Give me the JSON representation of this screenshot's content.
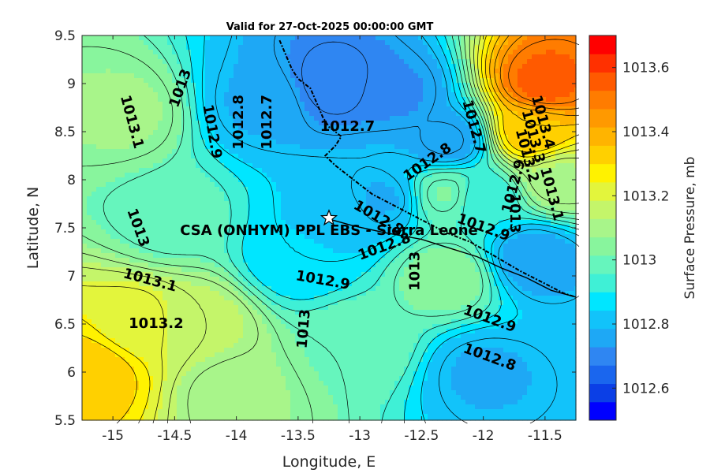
{
  "title": "Valid for 27-Oct-2025 00:00:00 GMT",
  "station_label": "CSA (ONHYM) PPL EBS - Sierra Leone",
  "chart_data": {
    "type": "contour-map",
    "title": "Valid for 27-Oct-2025 00:00:00 GMT",
    "xlabel": "Longitude, E",
    "ylabel": "Latitude, N",
    "xlim": [
      -15.25,
      -11.25
    ],
    "ylim": [
      5.5,
      9.5
    ],
    "x_ticks": [
      -15,
      -14.5,
      -14,
      -13.5,
      -13,
      -12.5,
      -12,
      -11.5
    ],
    "x_tick_labels": [
      "-15",
      "-14.5",
      "-14",
      "-13.5",
      "-13",
      "-12.5",
      "-12",
      "-11.5"
    ],
    "y_ticks": [
      5.5,
      6,
      6.5,
      7,
      7.5,
      8,
      8.5,
      9,
      9.5
    ],
    "y_tick_labels": [
      "5.5",
      "6",
      "6.5",
      "7",
      "7.5",
      "8",
      "8.5",
      "9",
      "9.5"
    ],
    "colorbar": {
      "label": "Surface Pressure, mb",
      "range": [
        1012.5,
        1013.7
      ],
      "levels": [
        1012.5,
        1012.55,
        1012.6,
        1012.65,
        1012.7,
        1012.75,
        1012.8,
        1012.85,
        1012.9,
        1012.95,
        1013.0,
        1013.05,
        1013.1,
        1013.15,
        1013.2,
        1013.25,
        1013.3,
        1013.35,
        1013.4,
        1013.45,
        1013.5,
        1013.55,
        1013.6,
        1013.65,
        1013.7
      ],
      "colors": [
        "#0000ff",
        "#0b3fe6",
        "#1a66ee",
        "#2f86f2",
        "#1ea8f5",
        "#12c3fa",
        "#00e6ff",
        "#3ff0d6",
        "#66f5bd",
        "#88f59d",
        "#a8f58a",
        "#c4f56a",
        "#e3f53c",
        "#fff200",
        "#ffd000",
        "#ffb400",
        "#ff9900",
        "#ff7c00",
        "#ff5a00",
        "#ff3000",
        "#ff0000"
      ],
      "tick_values": [
        1012.6,
        1012.8,
        1013.0,
        1013.2,
        1013.4,
        1013.6
      ],
      "tick_labels": [
        "1012.6",
        "1012.8",
        "1013",
        "1013.2",
        "1013.4",
        "1013.6"
      ]
    },
    "field_anchors": [
      {
        "lon": -15.2,
        "lat": 6.0,
        "p": 1013.35
      },
      {
        "lon": -14.8,
        "lat": 6.5,
        "p": 1013.22
      },
      {
        "lon": -14.3,
        "lat": 6.5,
        "p": 1013.15
      },
      {
        "lon": -14.9,
        "lat": 8.7,
        "p": 1013.08
      },
      {
        "lon": -14.5,
        "lat": 7.6,
        "p": 1012.98
      },
      {
        "lon": -13.8,
        "lat": 8.8,
        "p": 1012.78
      },
      {
        "lon": -13.2,
        "lat": 9.0,
        "p": 1012.68
      },
      {
        "lon": -12.7,
        "lat": 8.9,
        "p": 1012.72
      },
      {
        "lon": -12.3,
        "lat": 8.4,
        "p": 1012.74
      },
      {
        "lon": -11.5,
        "lat": 9.0,
        "p": 1013.55
      },
      {
        "lon": -11.6,
        "lat": 8.5,
        "p": 1013.35
      },
      {
        "lon": -11.4,
        "lat": 8.0,
        "p": 1013.12
      },
      {
        "lon": -12.0,
        "lat": 7.8,
        "p": 1012.9
      },
      {
        "lon": -12.3,
        "lat": 7.85,
        "p": 1013.02
      },
      {
        "lon": -12.3,
        "lat": 7.0,
        "p": 1013.05
      },
      {
        "lon": -11.6,
        "lat": 7.2,
        "p": 1012.75
      },
      {
        "lon": -12.0,
        "lat": 6.0,
        "p": 1012.78
      },
      {
        "lon": -13.5,
        "lat": 7.2,
        "p": 1012.85
      },
      {
        "lon": -13.2,
        "lat": 7.6,
        "p": 1012.82
      },
      {
        "lon": -13.0,
        "lat": 6.3,
        "p": 1013.0
      },
      {
        "lon": -14.0,
        "lat": 5.8,
        "p": 1013.08
      },
      {
        "lon": -12.8,
        "lat": 7.8,
        "p": 1012.78
      }
    ],
    "contour_labels": [
      {
        "text": "1013.1",
        "lon": -14.85,
        "lat": 8.6,
        "rot": 75
      },
      {
        "text": "1013",
        "lon": -14.45,
        "lat": 8.95,
        "rot": -70
      },
      {
        "text": "1012.9",
        "lon": -14.2,
        "lat": 8.5,
        "rot": 80
      },
      {
        "text": "1012.8",
        "lon": -13.98,
        "lat": 8.6,
        "rot": -90
      },
      {
        "text": "1012.7",
        "lon": -13.75,
        "lat": 8.6,
        "rot": -90
      },
      {
        "text": "1012.7",
        "lon": -13.1,
        "lat": 8.55,
        "rot": 0
      },
      {
        "text": "1012.7",
        "lon": -12.08,
        "lat": 8.55,
        "rot": 75
      },
      {
        "text": "1012.8",
        "lon": -12.45,
        "lat": 8.18,
        "rot": -35
      },
      {
        "text": "1013.4",
        "lon": -11.52,
        "lat": 8.6,
        "rot": 75
      },
      {
        "text": "1013.3",
        "lon": -11.6,
        "lat": 8.45,
        "rot": 75
      },
      {
        "text": "1013.2",
        "lon": -11.65,
        "lat": 8.25,
        "rot": 75
      },
      {
        "text": "1013.1",
        "lon": -11.45,
        "lat": 7.85,
        "rot": 75
      },
      {
        "text": "1012.9",
        "lon": -11.75,
        "lat": 7.93,
        "rot": -75
      },
      {
        "text": "1012.9",
        "lon": -12.0,
        "lat": 7.5,
        "rot": 20
      },
      {
        "text": "1013",
        "lon": -11.75,
        "lat": 7.65,
        "rot": 90
      },
      {
        "text": "1012.8",
        "lon": -12.85,
        "lat": 7.6,
        "rot": 30
      },
      {
        "text": "1012.8",
        "lon": -12.8,
        "lat": 7.3,
        "rot": -20
      },
      {
        "text": "1013",
        "lon": -14.8,
        "lat": 7.5,
        "rot": 70
      },
      {
        "text": "1013.1",
        "lon": -14.7,
        "lat": 6.95,
        "rot": 15
      },
      {
        "text": "1013.2",
        "lon": -14.65,
        "lat": 6.5,
        "rot": 0
      },
      {
        "text": "1012.9",
        "lon": -13.3,
        "lat": 6.95,
        "rot": 10
      },
      {
        "text": "1013",
        "lon": -13.45,
        "lat": 6.45,
        "rot": -85
      },
      {
        "text": "1013",
        "lon": -12.55,
        "lat": 7.05,
        "rot": -90
      },
      {
        "text": "1012.9",
        "lon": -11.95,
        "lat": 6.55,
        "rot": 20
      },
      {
        "text": "1012.8",
        "lon": -11.95,
        "lat": 6.15,
        "rot": 20
      }
    ],
    "station": {
      "name": "CSA (ONHYM) PPL EBS - Sierra Leone",
      "lon": -13.25,
      "lat": 7.6
    },
    "pipeline_route": [
      [
        -13.22,
        7.58
      ],
      [
        -13.05,
        7.52
      ],
      [
        -12.8,
        7.45
      ],
      [
        -12.5,
        7.38
      ],
      [
        -12.3,
        7.3
      ],
      [
        -12.05,
        7.2
      ],
      [
        -11.85,
        7.08
      ],
      [
        -11.65,
        6.98
      ],
      [
        -11.45,
        6.85
      ],
      [
        -11.25,
        6.78
      ]
    ],
    "coastline": [
      [
        -13.65,
        9.45
      ],
      [
        -13.6,
        9.3
      ],
      [
        -13.55,
        9.15
      ],
      [
        -13.5,
        9.05
      ],
      [
        -13.4,
        8.95
      ],
      [
        -13.35,
        8.8
      ],
      [
        -13.3,
        8.65
      ],
      [
        -13.25,
        8.55
      ],
      [
        -13.15,
        8.45
      ],
      [
        -13.2,
        8.35
      ],
      [
        -13.28,
        8.25
      ],
      [
        -13.2,
        8.15
      ],
      [
        -13.1,
        8.05
      ],
      [
        -13.0,
        7.95
      ],
      [
        -12.9,
        7.85
      ],
      [
        -12.75,
        7.75
      ],
      [
        -12.6,
        7.65
      ],
      [
        -12.45,
        7.55
      ],
      [
        -12.3,
        7.45
      ],
      [
        -12.1,
        7.35
      ],
      [
        -11.9,
        7.2
      ],
      [
        -11.7,
        7.05
      ],
      [
        -11.5,
        6.92
      ],
      [
        -11.35,
        6.82
      ],
      [
        -11.25,
        6.78
      ]
    ]
  }
}
